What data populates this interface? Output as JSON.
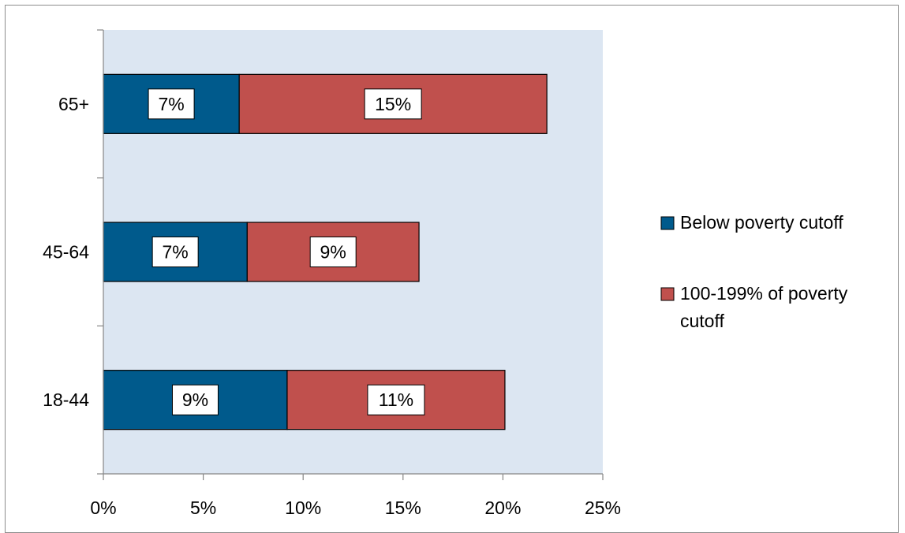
{
  "chart_data": {
    "type": "bar",
    "orientation": "horizontal",
    "stacked": true,
    "categories": [
      "18-44",
      "45-64",
      "65+"
    ],
    "series": [
      {
        "name": "Below poverty cutoff",
        "values": [
          9.2,
          7.2,
          6.8
        ],
        "labels": [
          "9%",
          "7%",
          "7%"
        ],
        "color": "#005a8c"
      },
      {
        "name": "100-199% of poverty cutoff",
        "values": [
          10.9,
          8.6,
          15.4
        ],
        "labels": [
          "11%",
          "9%",
          "15%"
        ],
        "color": "#c0504d"
      }
    ],
    "xlim": [
      0,
      25
    ],
    "xticks": [
      0,
      5,
      10,
      15,
      20,
      25
    ],
    "xtick_labels": [
      "0%",
      "5%",
      "10%",
      "15%",
      "20%",
      "25%"
    ],
    "title": "",
    "xlabel": "",
    "ylabel": "",
    "plot_background": "#dce6f2",
    "grid": false,
    "legend_position": "right"
  }
}
